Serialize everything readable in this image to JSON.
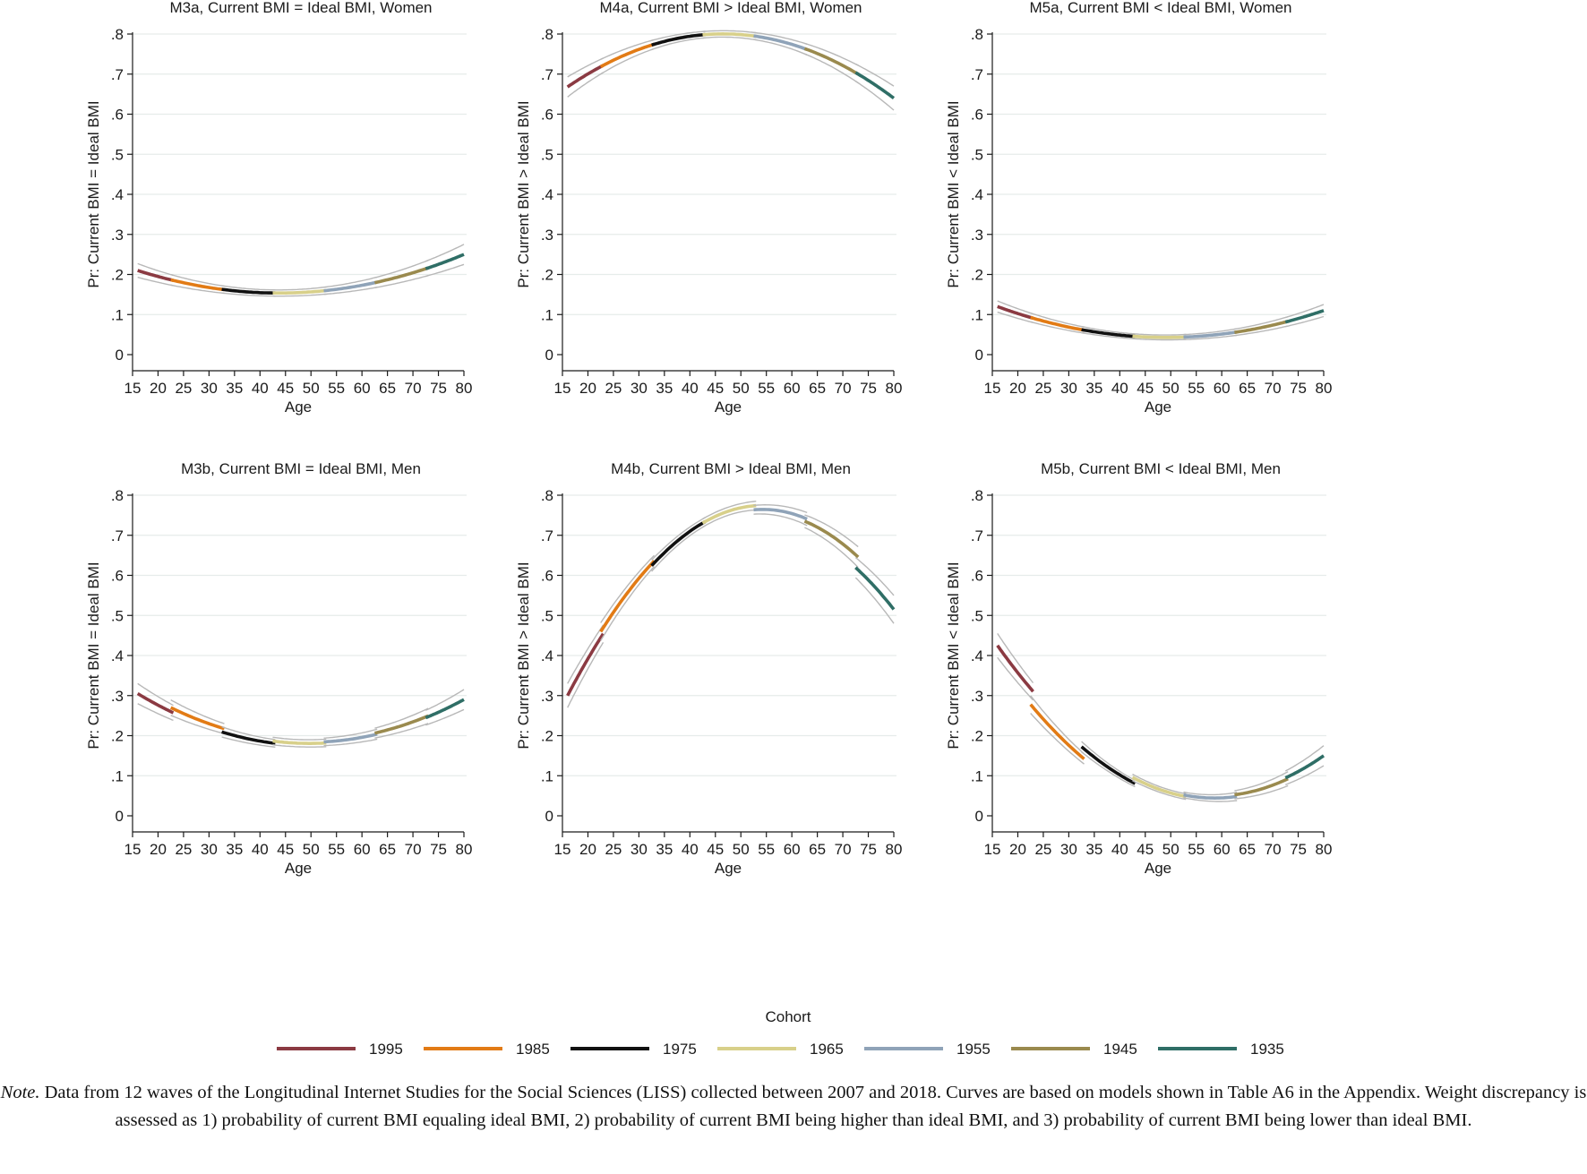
{
  "chart_data": {
    "type": "line",
    "ylabels": {
      "equal": "Pr: Current BMI = Ideal BMI",
      "higher": "Pr: Current BMI > Ideal BMI",
      "lower": "Pr: Current BMI < Ideal BMI"
    },
    "xlabel": "Age",
    "xticks": [
      15,
      20,
      25,
      30,
      35,
      40,
      45,
      50,
      55,
      60,
      65,
      70,
      75,
      80
    ],
    "yticks": [
      0,
      0.1,
      0.2,
      0.3,
      0.4,
      0.5,
      0.6,
      0.7,
      0.8
    ],
    "ytick_labels": [
      "0",
      ".1",
      ".2",
      ".3",
      ".4",
      ".5",
      ".6",
      ".7",
      ".8"
    ],
    "ylim": [
      0,
      0.8
    ],
    "xlim": [
      15,
      80
    ],
    "legend_title": "Cohort",
    "legend_placement": "bottom",
    "cohorts": [
      {
        "name": "1995",
        "color": "#8b3a42",
        "age_range": [
          16,
          23
        ]
      },
      {
        "name": "1985",
        "color": "#e27b15",
        "age_range": [
          22.5,
          33
        ]
      },
      {
        "name": "1975",
        "color": "#111111",
        "age_range": [
          32.5,
          43
        ]
      },
      {
        "name": "1965",
        "color": "#d8d08a",
        "age_range": [
          42.5,
          53
        ]
      },
      {
        "name": "1955",
        "color": "#8fa3b8",
        "age_range": [
          52.5,
          63
        ]
      },
      {
        "name": "1945",
        "color": "#9a8a4e",
        "age_range": [
          62.5,
          73
        ]
      },
      {
        "name": "1935",
        "color": "#2f6e66",
        "age_range": [
          72.5,
          80
        ]
      }
    ],
    "panels": [
      {
        "title": "M3a, Current BMI = Ideal BMI, Women",
        "ylabel_key": "equal",
        "curve": {
          "type": "quadratic",
          "a": 0.21,
          "b": 0.155,
          "c": 0.25
        },
        "ci_halfwidth": [
          0.017,
          0.008,
          0.025
        ],
        "segment_offsets": [
          0,
          0,
          0,
          0,
          0,
          0,
          0
        ],
        "series": [
          {
            "cohort": "1995",
            "x": [
              16,
              23
            ],
            "y": [
              0.21,
              0.188
            ]
          },
          {
            "cohort": "1985",
            "x": [
              22.5,
              33
            ],
            "y": [
              0.188,
              0.165
            ]
          },
          {
            "cohort": "1975",
            "x": [
              32.5,
              43
            ],
            "y": [
              0.166,
              0.155
            ]
          },
          {
            "cohort": "1965",
            "x": [
              42.5,
              53
            ],
            "y": [
              0.155,
              0.158
            ]
          },
          {
            "cohort": "1955",
            "x": [
              52.5,
              63
            ],
            "y": [
              0.16,
              0.178
            ]
          },
          {
            "cohort": "1945",
            "x": [
              62.5,
              73
            ],
            "y": [
              0.186,
              0.212
            ]
          },
          {
            "cohort": "1935",
            "x": [
              72.5,
              80
            ],
            "y": [
              0.218,
              0.25
            ]
          }
        ]
      },
      {
        "title": "M4a, Current BMI > Ideal BMI, Women",
        "ylabel_key": "higher",
        "curve": {
          "type": "quadratic",
          "a": 0.668,
          "b": 0.8,
          "c": 0.64
        },
        "ci_halfwidth": [
          0.025,
          0.008,
          0.03
        ],
        "segment_offsets": [
          0,
          0,
          0,
          0,
          0,
          0,
          0
        ],
        "series": [
          {
            "cohort": "1995",
            "x": [
              16,
              23
            ],
            "y": [
              0.668,
              0.716
            ]
          },
          {
            "cohort": "1985",
            "x": [
              22.5,
              33
            ],
            "y": [
              0.716,
              0.772
            ]
          },
          {
            "cohort": "1975",
            "x": [
              32.5,
              43
            ],
            "y": [
              0.772,
              0.797
            ]
          },
          {
            "cohort": "1965",
            "x": [
              42.5,
              53
            ],
            "y": [
              0.797,
              0.797
            ]
          },
          {
            "cohort": "1955",
            "x": [
              52.5,
              63
            ],
            "y": [
              0.795,
              0.758
            ]
          },
          {
            "cohort": "1945",
            "x": [
              62.5,
              73
            ],
            "y": [
              0.758,
              0.705
            ]
          },
          {
            "cohort": "1935",
            "x": [
              72.5,
              80
            ],
            "y": [
              0.7,
              0.64
            ]
          }
        ]
      },
      {
        "title": "M5a, Current BMI < Ideal BMI, Women",
        "ylabel_key": "lower",
        "curve": {
          "type": "quadratic",
          "a": 0.12,
          "b": 0.043,
          "c": 0.11
        },
        "ci_halfwidth": [
          0.014,
          0.006,
          0.015
        ],
        "segment_offsets": [
          0,
          0,
          0,
          0,
          0,
          0,
          0
        ],
        "series": [
          {
            "cohort": "1995",
            "x": [
              16,
              23
            ],
            "y": [
              0.12,
              0.098
            ]
          },
          {
            "cohort": "1985",
            "x": [
              22.5,
              33
            ],
            "y": [
              0.095,
              0.063
            ]
          },
          {
            "cohort": "1975",
            "x": [
              32.5,
              43
            ],
            "y": [
              0.063,
              0.048
            ]
          },
          {
            "cohort": "1965",
            "x": [
              42.5,
              53
            ],
            "y": [
              0.046,
              0.043
            ]
          },
          {
            "cohort": "1955",
            "x": [
              52.5,
              63
            ],
            "y": [
              0.045,
              0.055
            ]
          },
          {
            "cohort": "1945",
            "x": [
              62.5,
              73
            ],
            "y": [
              0.056,
              0.08
            ]
          },
          {
            "cohort": "1935",
            "x": [
              72.5,
              80
            ],
            "y": [
              0.08,
              0.11
            ]
          }
        ]
      },
      {
        "title": "M3b, Current BMI = Ideal BMI, Men",
        "ylabel_key": "equal",
        "curve": {
          "type": "quadratic",
          "a": 0.305,
          "b": 0.176,
          "c": 0.28
        },
        "ci_halfwidth": [
          0.025,
          0.009,
          0.025
        ],
        "segment_offsets": [
          0,
          0.01,
          0,
          0.005,
          0.008,
          0.012,
          0.01
        ],
        "series": [
          {
            "cohort": "1995",
            "x": [
              16,
              23
            ],
            "y": [
              0.305,
              0.255
            ]
          },
          {
            "cohort": "1985",
            "x": [
              22.5,
              33
            ],
            "y": [
              0.265,
              0.205
            ]
          },
          {
            "cohort": "1975",
            "x": [
              32.5,
              43
            ],
            "y": [
              0.215,
              0.175
            ]
          },
          {
            "cohort": "1965",
            "x": [
              42.5,
              53
            ],
            "y": [
              0.185,
              0.173
            ]
          },
          {
            "cohort": "1955",
            "x": [
              52.5,
              63
            ],
            "y": [
              0.183,
              0.188
            ]
          },
          {
            "cohort": "1945",
            "x": [
              62.5,
              73
            ],
            "y": [
              0.2,
              0.232
            ]
          },
          {
            "cohort": "1935",
            "x": [
              72.5,
              80
            ],
            "y": [
              0.25,
              0.28
            ]
          }
        ]
      },
      {
        "title": "M4b, Current BMI > Ideal BMI, Men",
        "ylabel_key": "higher",
        "curve": {
          "type": "quadratic",
          "a": 0.3,
          "b": 0.752,
          "c": 0.555
        },
        "ci_halfwidth": [
          0.03,
          0.01,
          0.035
        ],
        "segment_offsets": [
          0,
          0.015,
          0.01,
          0.01,
          0,
          -0.008,
          -0.04
        ],
        "series": [
          {
            "cohort": "1995",
            "x": [
              16,
              23
            ],
            "y": [
              0.3,
              0.43
            ]
          },
          {
            "cohort": "1985",
            "x": [
              22.5,
              33
            ],
            "y": [
              0.445,
              0.6
            ]
          },
          {
            "cohort": "1975",
            "x": [
              32.5,
              43
            ],
            "y": [
              0.615,
              0.715
            ]
          },
          {
            "cohort": "1965",
            "x": [
              42.5,
              53
            ],
            "y": [
              0.725,
              0.755
            ]
          },
          {
            "cohort": "1955",
            "x": [
              52.5,
              63
            ],
            "y": [
              0.752,
              0.74
            ]
          },
          {
            "cohort": "1945",
            "x": [
              62.5,
              73
            ],
            "y": [
              0.725,
              0.66
            ]
          },
          {
            "cohort": "1935",
            "x": [
              72.5,
              80
            ],
            "y": [
              0.63,
              0.555
            ]
          }
        ]
      },
      {
        "title": "M5b, Current BMI < Ideal BMI, Men",
        "ylabel_key": "lower",
        "curve": {
          "type": "quadratic",
          "a": 0.425,
          "b": 0.068,
          "c": 0.14
        },
        "ci_halfwidth": [
          0.03,
          0.007,
          0.025
        ],
        "segment_offsets": [
          0,
          -0.04,
          -0.015,
          -0.003,
          0,
          0.005,
          0.01
        ],
        "series": [
          {
            "cohort": "1995",
            "x": [
              16,
              23
            ],
            "y": [
              0.425,
              0.32
            ]
          },
          {
            "cohort": "1985",
            "x": [
              22.5,
              33
            ],
            "y": [
              0.285,
              0.175
            ]
          },
          {
            "cohort": "1975",
            "x": [
              32.5,
              43
            ],
            "y": [
              0.16,
              0.095
            ]
          },
          {
            "cohort": "1965",
            "x": [
              42.5,
              53
            ],
            "y": [
              0.088,
              0.068
            ]
          },
          {
            "cohort": "1955",
            "x": [
              52.5,
              63
            ],
            "y": [
              0.068,
              0.075
            ]
          },
          {
            "cohort": "1945",
            "x": [
              62.5,
              73
            ],
            "y": [
              0.08,
              0.105
            ]
          },
          {
            "cohort": "1935",
            "x": [
              72.5,
              80
            ],
            "y": [
              0.115,
              0.14
            ]
          }
        ]
      }
    ]
  },
  "note": {
    "lead": "Note.",
    "text": " Data from 12 waves of the Longitudinal Internet Studies for the Social Sciences (LISS) collected between 2007 and 2018. Curves are based on models shown in Table A6 in the Appendix. Weight discrepancy is assessed as 1) probability of current BMI equaling ideal BMI, 2) probability of current BMI being higher than ideal BMI, and 3) probability of current BMI being lower than ideal BMI."
  },
  "colors": {
    "grid": "#e6ecea",
    "ci": "#b8b8b8",
    "axis": "#1a1a1a"
  }
}
